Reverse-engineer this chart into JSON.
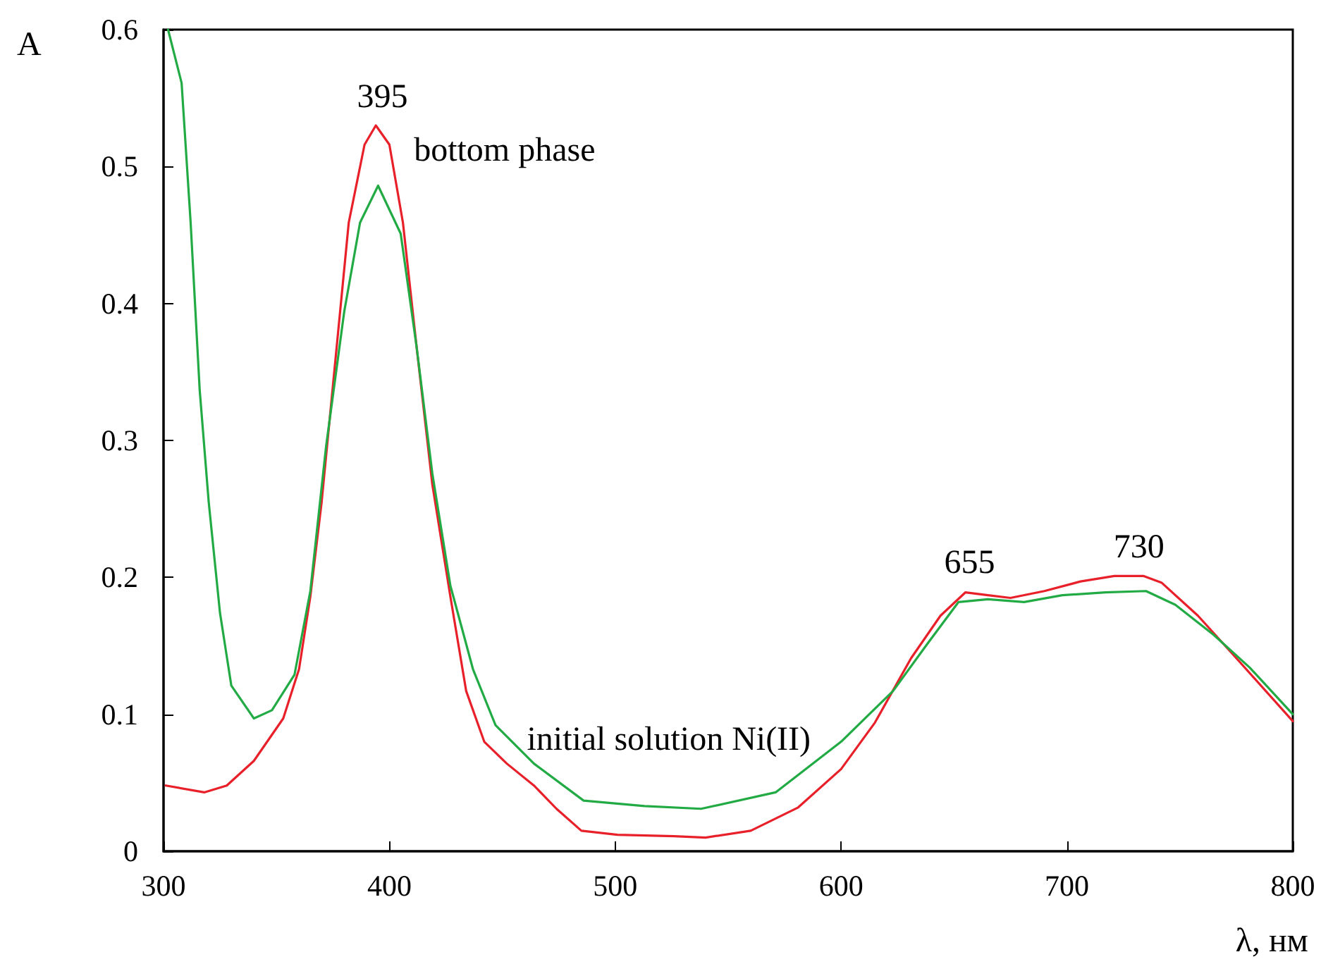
{
  "chart_data": {
    "type": "line",
    "xlabel": "λ, нм",
    "ylabel": "A",
    "xlim": [
      300,
      800
    ],
    "xticks": [
      300,
      400,
      500,
      600,
      700,
      800
    ],
    "ylim": [
      0,
      0.6
    ],
    "yticks": [
      0,
      0.1,
      0.2,
      0.3,
      0.4,
      0.5,
      0.6
    ],
    "grid": false,
    "legend": false,
    "marker": "none",
    "line_style": "solid",
    "annotations": [
      {
        "text": "395",
        "x": 395,
        "y": 0.53
      },
      {
        "text": "655",
        "x": 655,
        "y": 0.19
      },
      {
        "text": "730",
        "x": 730,
        "y": 0.201
      }
    ],
    "series": [
      {
        "name": "bottom phase",
        "color": "#e8202a",
        "x": [
          301,
          318,
          328,
          340,
          353,
          360,
          365,
          370,
          376,
          382,
          389,
          394,
          400,
          406,
          412,
          419,
          427,
          434,
          442,
          452,
          464,
          474,
          485,
          501,
          526,
          540,
          560,
          581,
          600,
          615,
          631,
          644,
          655,
          665,
          675,
          690,
          706,
          721,
          734,
          742,
          758,
          775,
          800
        ],
        "values": [
          0.048,
          0.043,
          0.048,
          0.066,
          0.097,
          0.133,
          0.186,
          0.255,
          0.357,
          0.459,
          0.516,
          0.53,
          0.516,
          0.459,
          0.369,
          0.268,
          0.186,
          0.117,
          0.08,
          0.064,
          0.048,
          0.031,
          0.015,
          0.012,
          0.011,
          0.01,
          0.015,
          0.032,
          0.06,
          0.094,
          0.141,
          0.172,
          0.189,
          0.187,
          0.185,
          0.19,
          0.197,
          0.201,
          0.201,
          0.196,
          0.172,
          0.141,
          0.095
        ]
      },
      {
        "name": "initial solution Ni(II)",
        "color": "#22aa44",
        "x": [
          302,
          308,
          312,
          316,
          320,
          325,
          330,
          340,
          348,
          358,
          365,
          372,
          380,
          387,
          395,
          405,
          412,
          419,
          427,
          437,
          447,
          464,
          486,
          513,
          538,
          571,
          600,
          623,
          638,
          652,
          665,
          681,
          698,
          717,
          735,
          748,
          765,
          781,
          800
        ],
        "values": [
          0.6,
          0.561,
          0.459,
          0.337,
          0.255,
          0.174,
          0.121,
          0.097,
          0.103,
          0.129,
          0.19,
          0.296,
          0.394,
          0.459,
          0.486,
          0.451,
          0.369,
          0.276,
          0.194,
          0.133,
          0.092,
          0.064,
          0.037,
          0.033,
          0.031,
          0.043,
          0.08,
          0.117,
          0.151,
          0.182,
          0.184,
          0.182,
          0.187,
          0.189,
          0.19,
          0.18,
          0.158,
          0.134,
          0.1
        ]
      }
    ]
  }
}
